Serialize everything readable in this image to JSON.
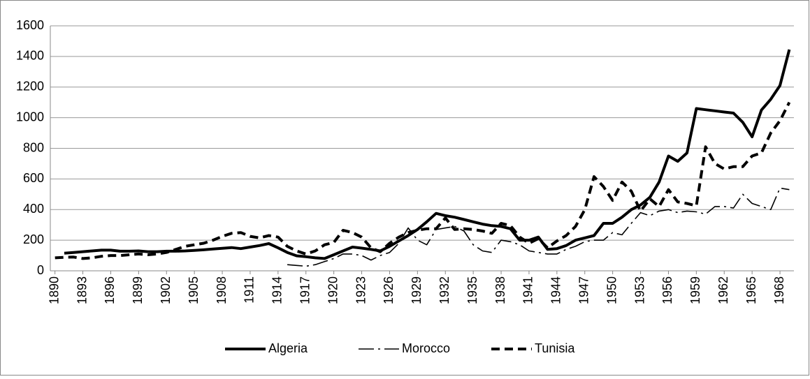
{
  "chart_data": {
    "type": "line",
    "x": [
      1890,
      1891,
      1892,
      1893,
      1894,
      1895,
      1896,
      1897,
      1898,
      1899,
      1900,
      1901,
      1902,
      1903,
      1904,
      1905,
      1906,
      1907,
      1908,
      1909,
      1910,
      1911,
      1912,
      1913,
      1914,
      1915,
      1916,
      1917,
      1918,
      1919,
      1920,
      1921,
      1922,
      1923,
      1924,
      1925,
      1926,
      1927,
      1928,
      1929,
      1930,
      1931,
      1932,
      1933,
      1934,
      1935,
      1936,
      1937,
      1938,
      1939,
      1940,
      1941,
      1942,
      1943,
      1944,
      1945,
      1946,
      1947,
      1948,
      1949,
      1950,
      1951,
      1952,
      1953,
      1954,
      1955,
      1956,
      1957,
      1958,
      1959,
      1960,
      1961,
      1962,
      1963,
      1964,
      1965,
      1966,
      1967,
      1968,
      1969
    ],
    "xlim": [
      1889.5,
      1969.5
    ],
    "xticks": [
      1890,
      1893,
      1896,
      1899,
      1902,
      1905,
      1908,
      1911,
      1914,
      1917,
      1920,
      1923,
      1926,
      1929,
      1932,
      1935,
      1938,
      1941,
      1944,
      1947,
      1950,
      1953,
      1956,
      1959,
      1962,
      1965,
      1968
    ],
    "ylim": [
      0,
      1600
    ],
    "yticks": [
      0,
      200,
      400,
      600,
      800,
      1000,
      1200,
      1400,
      1600
    ],
    "grid": true,
    "legend": "bottom",
    "series": [
      {
        "name": "Algeria",
        "color": "#000000",
        "style": "solid",
        "values": [
          null,
          115,
          120,
          125,
          130,
          135,
          135,
          128,
          128,
          130,
          125,
          125,
          128,
          128,
          130,
          133,
          137,
          142,
          147,
          152,
          145,
          155,
          165,
          178,
          150,
          120,
          98,
          92,
          85,
          80,
          105,
          130,
          155,
          148,
          140,
          130,
          160,
          195,
          230,
          270,
          320,
          375,
          360,
          350,
          335,
          320,
          305,
          295,
          290,
          275,
          200,
          200,
          220,
          140,
          145,
          165,
          200,
          215,
          230,
          310,
          310,
          350,
          400,
          430,
          480,
          580,
          750,
          715,
          770,
          1060,
          1052,
          1045,
          1037,
          1030,
          970,
          875,
          1050,
          1120,
          1210,
          1445
        ]
      },
      {
        "name": "Morocco",
        "color": "#000000",
        "style": "dash-dot",
        "values": [
          null,
          null,
          null,
          null,
          null,
          null,
          null,
          null,
          null,
          null,
          null,
          null,
          null,
          null,
          null,
          null,
          null,
          null,
          null,
          null,
          null,
          null,
          null,
          null,
          null,
          40,
          35,
          30,
          40,
          60,
          80,
          110,
          110,
          100,
          70,
          100,
          120,
          180,
          280,
          200,
          170,
          270,
          280,
          290,
          260,
          170,
          130,
          120,
          200,
          190,
          170,
          130,
          120,
          110,
          110,
          140,
          160,
          190,
          200,
          200,
          250,
          235,
          310,
          380,
          360,
          390,
          400,
          380,
          390,
          385,
          370,
          420,
          420,
          410,
          500,
          440,
          420,
          400,
          540,
          530
        ]
      },
      {
        "name": "Tunisia",
        "color": "#000000",
        "style": "dash",
        "values": [
          85,
          88,
          90,
          80,
          85,
          95,
          100,
          100,
          105,
          110,
          105,
          110,
          120,
          140,
          160,
          170,
          180,
          200,
          225,
          245,
          250,
          225,
          215,
          230,
          220,
          160,
          130,
          110,
          130,
          170,
          185,
          265,
          250,
          220,
          150,
          125,
          180,
          220,
          250,
          265,
          275,
          275,
          345,
          270,
          275,
          270,
          260,
          245,
          310,
          295,
          220,
          180,
          210,
          150,
          195,
          230,
          290,
          400,
          615,
          550,
          460,
          580,
          520,
          390,
          470,
          420,
          530,
          450,
          440,
          425,
          810,
          700,
          665,
          680,
          680,
          750,
          770,
          900,
          980,
          1100
        ]
      }
    ]
  }
}
